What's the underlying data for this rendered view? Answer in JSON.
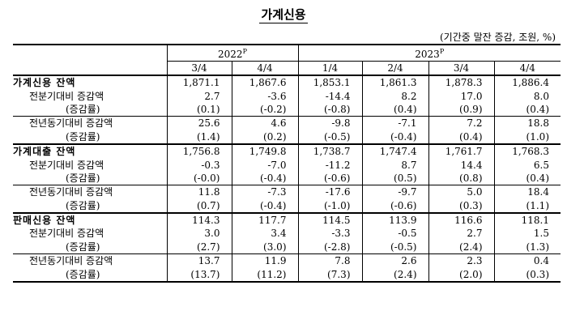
{
  "title": "가계신용",
  "unit": "(기간중 말잔 증감, 조원, %)",
  "header": {
    "year1": "2022",
    "year1_sup": "P",
    "year2": "2023",
    "year2_sup": "P",
    "quarters": [
      "3/4",
      "4/4",
      "1/4",
      "2/4",
      "3/4",
      "4/4"
    ]
  },
  "rows": [
    {
      "label": "가계신용 잔액",
      "type": "main",
      "values": [
        "1,871.1",
        "1,867.6",
        "1,853.1",
        "1,861.3",
        "1,878.3",
        "1,886.4"
      ]
    },
    {
      "label": "전분기대비 증감액",
      "type": "sub",
      "values": [
        "2.7",
        "-3.6",
        "-14.4",
        "8.2",
        "17.0",
        "8.0"
      ]
    },
    {
      "label": "(증감률)",
      "type": "rate",
      "values": [
        "(0.1)",
        "(-0.2)",
        "(-0.8)",
        "(0.4)",
        "(0.9)",
        "(0.4)"
      ]
    },
    {
      "label": "전년동기대비 증감액",
      "type": "sub",
      "values": [
        "25.6",
        "4.6",
        "-9.8",
        "-7.1",
        "7.2",
        "18.8"
      ]
    },
    {
      "label": "(증감률)",
      "type": "rate",
      "values": [
        "(1.4)",
        "(0.2)",
        "(-0.5)",
        "(-0.4)",
        "(0.4)",
        "(1.0)"
      ]
    },
    {
      "label": "가계대출 잔액",
      "type": "main",
      "values": [
        "1,756.8",
        "1,749.8",
        "1,738.7",
        "1,747.4",
        "1,761.7",
        "1,768.3"
      ]
    },
    {
      "label": "전분기대비 증감액",
      "type": "sub",
      "values": [
        "-0.3",
        "-7.0",
        "-11.2",
        "8.7",
        "14.4",
        "6.5"
      ]
    },
    {
      "label": "(증감률)",
      "type": "rate",
      "values": [
        "(-0.0)",
        "(-0.4)",
        "(-0.6)",
        "(0.5)",
        "(0.8)",
        "(0.4)"
      ]
    },
    {
      "label": "전년동기대비 증감액",
      "type": "sub",
      "values": [
        "11.8",
        "-7.3",
        "-17.6",
        "-9.7",
        "5.0",
        "18.4"
      ]
    },
    {
      "label": "(증감률)",
      "type": "rate",
      "values": [
        "(0.7)",
        "(-0.4)",
        "(-1.0)",
        "(-0.6)",
        "(0.3)",
        "(1.1)"
      ]
    },
    {
      "label": "판매신용 잔액",
      "type": "main",
      "values": [
        "114.3",
        "117.7",
        "114.5",
        "113.9",
        "116.6",
        "118.1"
      ]
    },
    {
      "label": "전분기대비 증감액",
      "type": "sub",
      "values": [
        "3.0",
        "3.4",
        "-3.3",
        "-0.5",
        "2.7",
        "1.5"
      ]
    },
    {
      "label": "(증감률)",
      "type": "rate",
      "values": [
        "(2.7)",
        "(3.0)",
        "(-2.8)",
        "(-0.5)",
        "(2.4)",
        "(1.3)"
      ]
    },
    {
      "label": "전년동기대비 증감액",
      "type": "sub",
      "values": [
        "13.7",
        "11.9",
        "7.8",
        "2.6",
        "2.3",
        "0.4"
      ]
    },
    {
      "label": "(증감률)",
      "type": "rate",
      "values": [
        "(13.7)",
        "(11.2)",
        "(7.3)",
        "(2.4)",
        "(2.0)",
        "(0.3)"
      ]
    }
  ]
}
